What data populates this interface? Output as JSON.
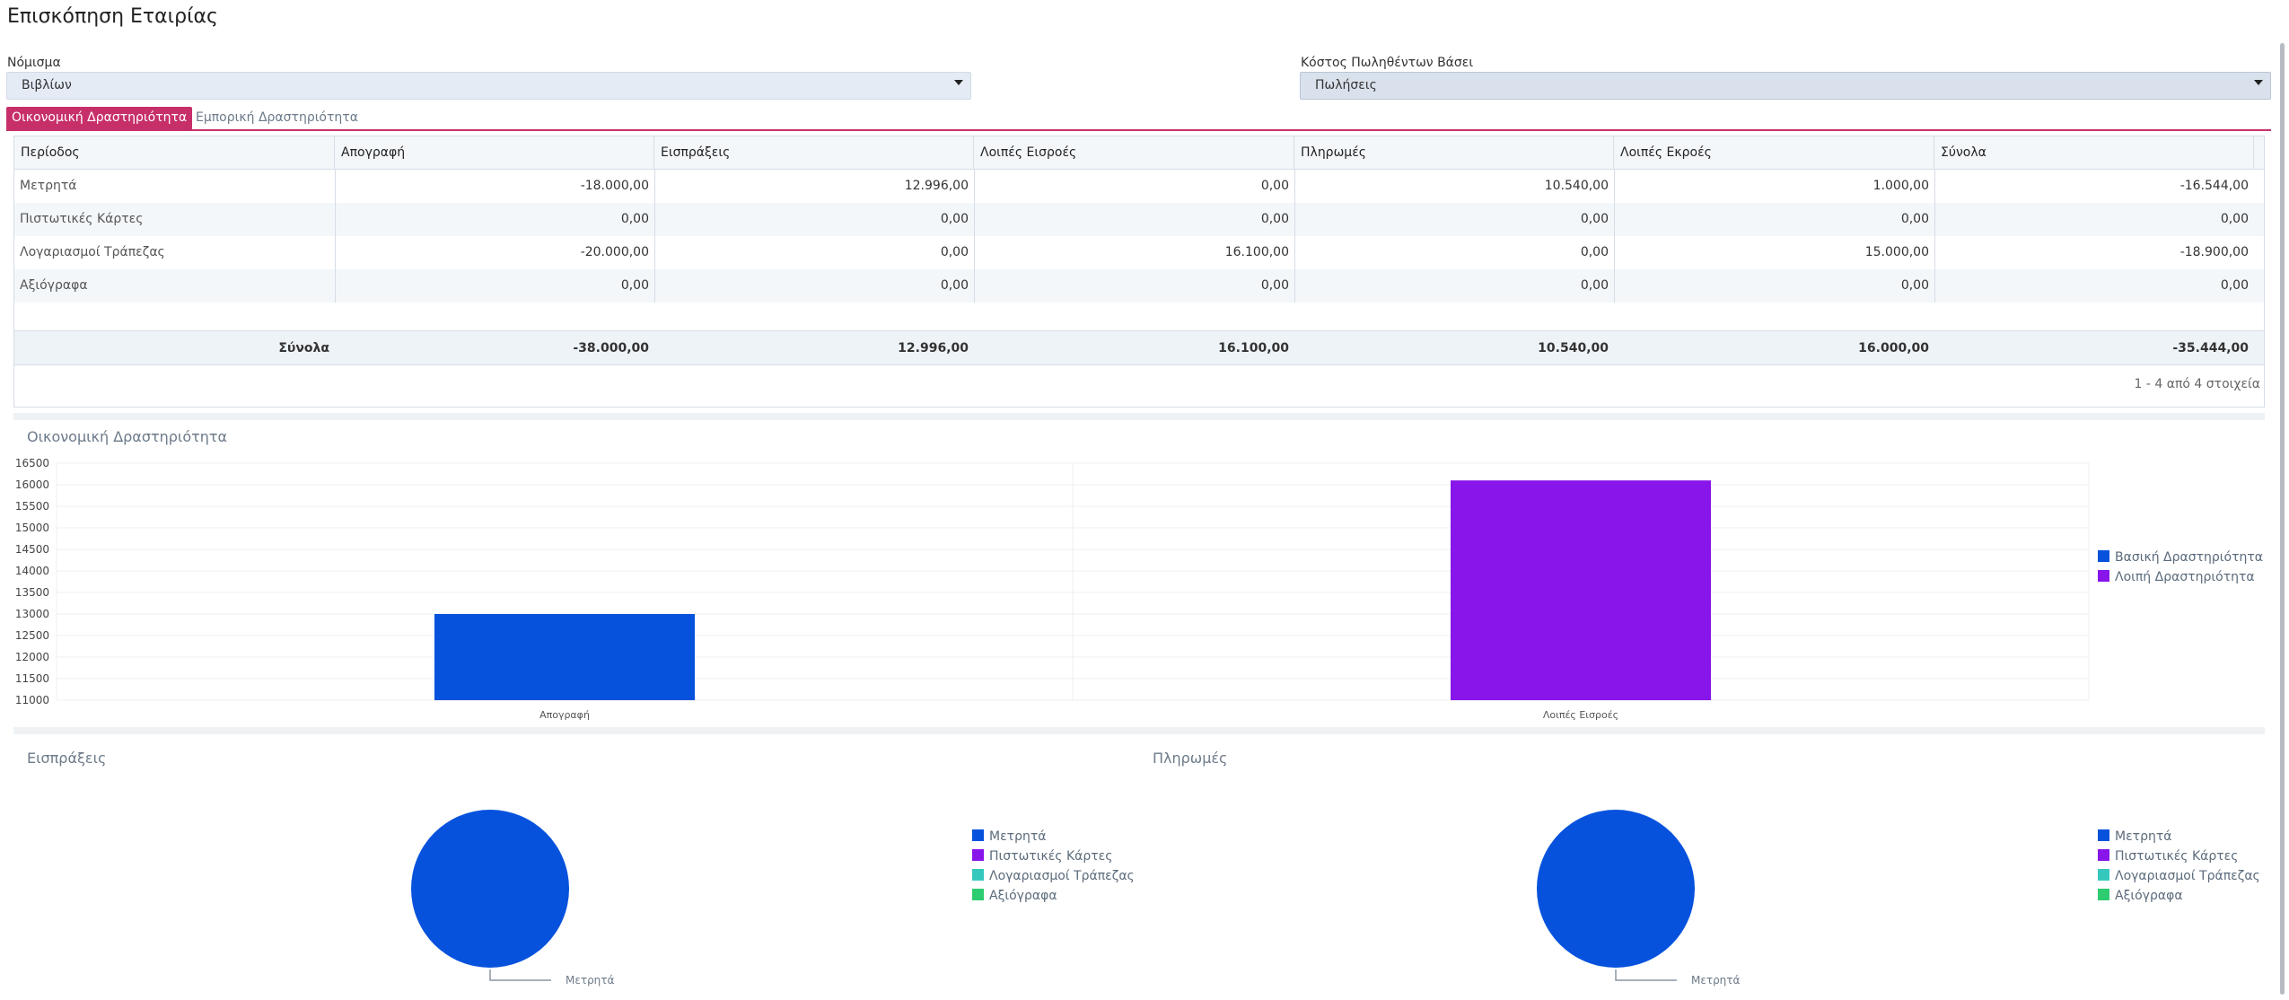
{
  "page": {
    "title": "Επισκόπηση Εταιρίας"
  },
  "filters": {
    "currency": {
      "label": "Νόμισμα",
      "value": "Βιβλίων"
    },
    "cogs_basis": {
      "label": "Κόστος Πωληθέντων Βάσει",
      "value": "Πωλήσεις"
    }
  },
  "tabs": [
    {
      "label": "Οικονομική Δραστηριότητα",
      "active": true
    },
    {
      "label": "Εμπορική Δραστηριότητα",
      "active": false
    }
  ],
  "grid": {
    "columns": [
      "Περίοδος",
      "Απογραφή",
      "Εισπράξεις",
      "Λοιπές Εισροές",
      "Πληρωμές",
      "Λοιπές Εκροές",
      "Σύνολα"
    ],
    "rows": [
      [
        "Μετρητά",
        "-18.000,00",
        "12.996,00",
        "0,00",
        "10.540,00",
        "1.000,00",
        "-16.544,00"
      ],
      [
        "Πιστωτικές Κάρτες",
        "0,00",
        "0,00",
        "0,00",
        "0,00",
        "0,00",
        "0,00"
      ],
      [
        "Λογαριασμοί Τράπεζας",
        "-20.000,00",
        "0,00",
        "16.100,00",
        "0,00",
        "15.000,00",
        "-18.900,00"
      ],
      [
        "Αξιόγραφα",
        "0,00",
        "0,00",
        "0,00",
        "0,00",
        "0,00",
        "0,00"
      ]
    ],
    "totals": [
      "Σύνολα",
      "-38.000,00",
      "12.996,00",
      "16.100,00",
      "10.540,00",
      "16.000,00",
      "-35.444,00"
    ],
    "pager": "1 - 4 από 4 στοιχεία"
  },
  "colors": {
    "accent": "#c72f6a",
    "blue": "#0652dd",
    "purple": "#8815e9",
    "teal": "#35c9be",
    "green": "#2ecc71"
  },
  "chart_data": [
    {
      "type": "bar",
      "title": "Οικονομική Δραστηριότητα",
      "categories": [
        "Απογραφή",
        "Λοιπές Εισροές"
      ],
      "series": [
        {
          "name": "Βασική Δραστηριότητα",
          "values": [
            13000,
            null
          ]
        },
        {
          "name": "Λοιπή Δραστηριότητα",
          "values": [
            null,
            16100
          ]
        }
      ],
      "ylim": [
        11000,
        16500
      ],
      "yticks": [
        16500,
        16000,
        15500,
        15000,
        14500,
        14000,
        13500,
        13000,
        12500,
        12000,
        11500,
        11000
      ],
      "grid": true,
      "legend": "right"
    },
    {
      "type": "pie",
      "title": "Εισπράξεις",
      "labels": [
        "Μετρητά",
        "Πιστωτικές Κάρτες",
        "Λογαριασμοί Τράπεζας",
        "Αξιόγραφα"
      ],
      "values": [
        12996,
        0,
        0,
        0
      ],
      "slice_label": "Μετρητά",
      "legend": "right"
    },
    {
      "type": "pie",
      "title": "Πληρωμές",
      "labels": [
        "Μετρητά",
        "Πιστωτικές Κάρτες",
        "Λογαριασμοί Τράπεζας",
        "Αξιόγραφα"
      ],
      "values": [
        10540,
        0,
        0,
        0
      ],
      "slice_label": "Μετρητά",
      "legend": "right"
    }
  ]
}
